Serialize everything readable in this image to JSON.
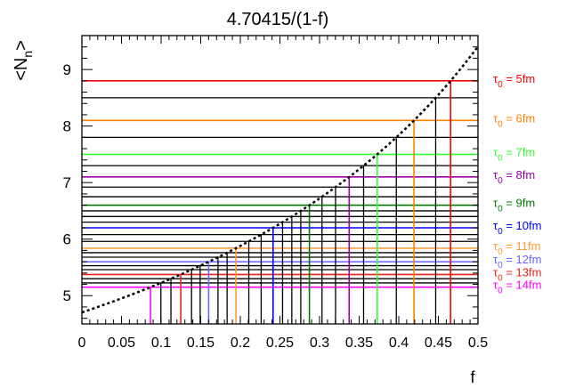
{
  "chart_data": {
    "type": "line",
    "title": "4.70415/(1-f)",
    "xlabel": "f",
    "ylabel": "<N_n>",
    "xlim": [
      0,
      0.5
    ],
    "ylim": [
      4.5,
      9.6
    ],
    "x_ticks": [
      "0",
      "0.05",
      "0.1",
      "0.15",
      "0.2",
      "0.25",
      "0.3",
      "0.35",
      "0.4",
      "0.45",
      "0.5"
    ],
    "y_ticks": [
      "5",
      "6",
      "7",
      "8",
      "9"
    ],
    "grid": false,
    "legend_position": "right",
    "curve": {
      "type": "dashed",
      "a": 4.70415,
      "formula": "4.70415/(1-f)",
      "color": "#000000"
    },
    "levels": [
      {
        "y": 5.15,
        "f": 0.0866
      },
      {
        "y": 5.225,
        "f": 0.0997
      },
      {
        "y": 5.3,
        "f": 0.1124
      },
      {
        "y": 5.375,
        "f": 0.1248
      },
      {
        "y": 5.46,
        "f": 0.1384
      },
      {
        "y": 5.53,
        "f": 0.1493
      },
      {
        "y": 5.6,
        "f": 0.16
      },
      {
        "y": 5.68,
        "f": 0.1718
      },
      {
        "y": 5.76,
        "f": 0.1833
      },
      {
        "y": 5.84,
        "f": 0.1945
      },
      {
        "y": 5.96,
        "f": 0.2107
      },
      {
        "y": 6.08,
        "f": 0.2263
      },
      {
        "y": 6.2,
        "f": 0.2413
      },
      {
        "y": 6.3,
        "f": 0.2533
      },
      {
        "y": 6.4,
        "f": 0.265
      },
      {
        "y": 6.5,
        "f": 0.2763
      },
      {
        "y": 6.6,
        "f": 0.2872
      },
      {
        "y": 6.75,
        "f": 0.3031
      },
      {
        "y": 6.92,
        "f": 0.3202
      },
      {
        "y": 7.1,
        "f": 0.3374
      },
      {
        "y": 7.3,
        "f": 0.3556
      },
      {
        "y": 7.5,
        "f": 0.3728
      },
      {
        "y": 7.8,
        "f": 0.3969
      },
      {
        "y": 8.1,
        "f": 0.4192
      },
      {
        "y": 8.5,
        "f": 0.4466
      },
      {
        "y": 8.8,
        "f": 0.4654
      }
    ],
    "series": [
      {
        "name": "τ0 = 5fm",
        "label_main": "τ",
        "label_sub": "0",
        "label_rest": " = 5fm",
        "y": 8.8,
        "f": 0.4654,
        "color": "#ff0000"
      },
      {
        "name": "τ0 = 6fm",
        "label_main": "τ",
        "label_sub": "0",
        "label_rest": " = 6fm",
        "y": 8.1,
        "f": 0.4192,
        "color": "#ff7f00"
      },
      {
        "name": "τ0 = 7fm",
        "label_main": "τ",
        "label_sub": "0",
        "label_rest": " = 7fm",
        "y": 7.5,
        "f": 0.3728,
        "color": "#33ff33"
      },
      {
        "name": "τ0 = 8fm",
        "label_main": "τ",
        "label_sub": "0",
        "label_rest": " = 8fm",
        "y": 7.1,
        "f": 0.3374,
        "color": "#9900aa"
      },
      {
        "name": "τ0 = 9fm",
        "label_main": "τ",
        "label_sub": "0",
        "label_rest": " = 9fm",
        "y": 6.6,
        "f": 0.2872,
        "color": "#007a00"
      },
      {
        "name": "τ0 = 10fm",
        "label_main": "τ",
        "label_sub": "0",
        "label_rest": " = 10fm",
        "y": 6.2,
        "f": 0.2413,
        "color": "#0000ff"
      },
      {
        "name": "τ0 = 11fm",
        "label_main": "τ",
        "label_sub": "0",
        "label_rest": " = 11fm",
        "y": 5.84,
        "f": 0.1945,
        "color": "#ff9933"
      },
      {
        "name": "τ0 = 12fm",
        "label_main": "τ",
        "label_sub": "0",
        "label_rest": " = 12fm",
        "y": 5.6,
        "f": 0.16,
        "color": "#6666ff"
      },
      {
        "name": "τ0 = 13fm",
        "label_main": "τ",
        "label_sub": "0",
        "label_rest": " = 13fm",
        "y": 5.375,
        "f": 0.1248,
        "color": "#e8231a"
      },
      {
        "name": "τ0 = 14fm",
        "label_main": "τ",
        "label_sub": "0",
        "label_rest": " = 14fm",
        "y": 5.15,
        "f": 0.0866,
        "color": "#ff00ff"
      }
    ]
  }
}
